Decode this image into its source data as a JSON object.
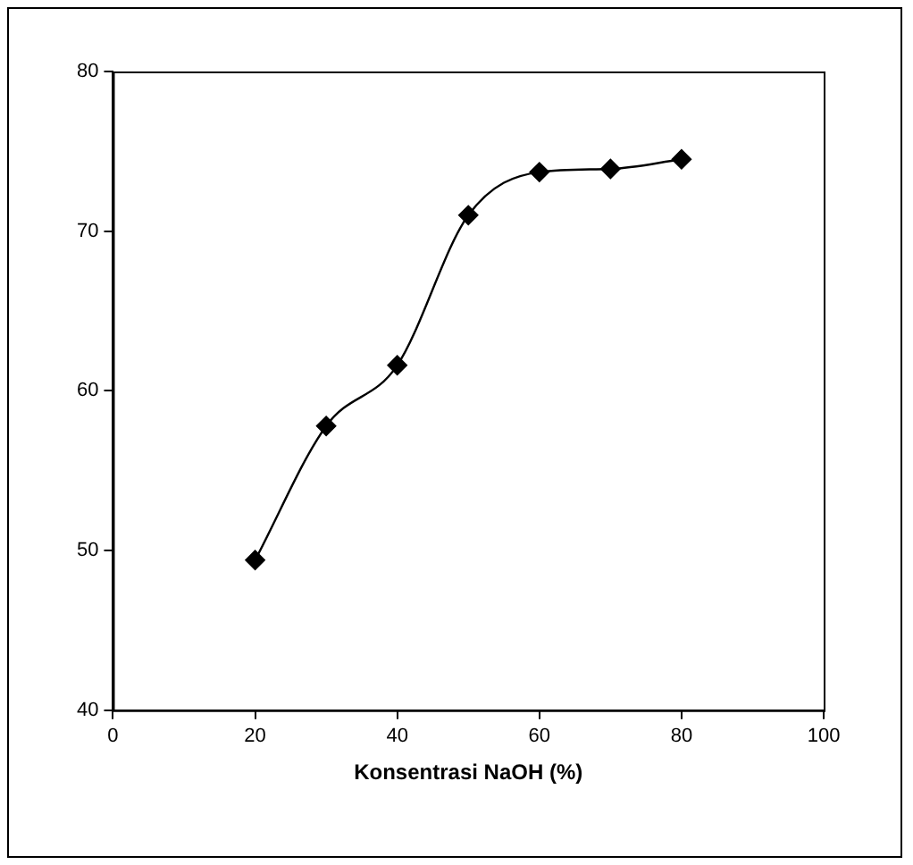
{
  "chart_data": {
    "type": "line",
    "xlabel": "Konsentrasi NaOH (%)",
    "x": [
      20,
      30,
      40,
      50,
      60,
      70,
      80
    ],
    "series": [
      {
        "color": "#000000",
        "values": [
          49.4,
          57.8,
          61.6,
          71.0,
          73.7,
          73.9,
          74.5
        ]
      }
    ],
    "xlim": [
      0,
      100
    ],
    "xticks": [
      0,
      20,
      40,
      60,
      80,
      100
    ],
    "ylim": [
      40,
      80
    ],
    "yticks": [
      40,
      50,
      60,
      70,
      80
    ],
    "grid": false,
    "legend": false,
    "marker": "diamond",
    "line_style": "solid"
  }
}
